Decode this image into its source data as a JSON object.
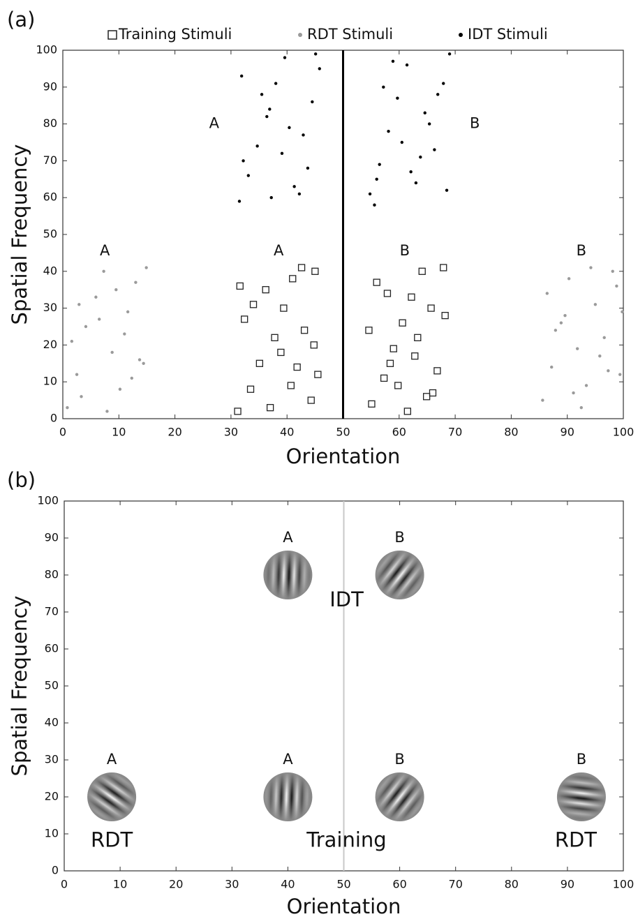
{
  "chart_data": [
    {
      "type": "scatter",
      "panel_label": "(a)",
      "x_label": "Orientation",
      "y_label": "Spatial Frequency",
      "xlim": [
        0,
        100
      ],
      "ylim": [
        0,
        100
      ],
      "xticks": [
        0,
        10,
        20,
        30,
        40,
        50,
        60,
        70,
        80,
        90,
        100
      ],
      "yticks": [
        0,
        10,
        20,
        30,
        40,
        50,
        60,
        70,
        80,
        90,
        100
      ],
      "vline": {
        "x": 50,
        "color": "#000000"
      },
      "series": [
        {
          "name": "Training Stimuli",
          "marker": "square",
          "color": "#222222",
          "x": [
            31.2,
            33.5,
            35.1,
            37.8,
            39.4,
            41.0,
            42.6,
            44.3,
            45.5,
            32.4,
            36.2,
            38.9,
            40.7,
            43.1,
            45.0,
            34.0,
            37.0,
            41.8,
            44.8,
            31.6,
            55.1,
            57.3,
            59.0,
            60.6,
            62.2,
            64.1,
            66.0,
            68.2,
            56.0,
            58.4,
            61.5,
            63.3,
            65.7,
            67.9,
            54.6,
            59.8,
            62.8,
            66.8,
            57.9,
            64.9
          ],
          "y": [
            2,
            8,
            15,
            22,
            30,
            38,
            41,
            5,
            12,
            27,
            35,
            18,
            9,
            24,
            40,
            31,
            3,
            14,
            20,
            36,
            4,
            11,
            19,
            26,
            33,
            40,
            7,
            28,
            37,
            15,
            2,
            22,
            30,
            41,
            24,
            9,
            17,
            13,
            34,
            6
          ]
        },
        {
          "name": "RDT Stimuli",
          "marker": "circle",
          "color": "#9a9a9a",
          "x": [
            0.8,
            2.5,
            4.1,
            5.9,
            7.3,
            8.8,
            10.2,
            11.6,
            13.0,
            14.4,
            1.6,
            3.3,
            6.5,
            9.5,
            12.3,
            14.9,
            2.9,
            7.9,
            11.0,
            13.7,
            85.6,
            87.2,
            88.9,
            90.3,
            91.8,
            93.4,
            95.0,
            96.6,
            98.1,
            99.4,
            86.4,
            89.6,
            92.5,
            95.8,
            98.8,
            87.9,
            91.1,
            94.2,
            97.3,
            99.8
          ],
          "y": [
            3,
            12,
            25,
            33,
            40,
            18,
            8,
            29,
            37,
            15,
            21,
            6,
            27,
            35,
            11,
            41,
            31,
            2,
            23,
            16,
            5,
            14,
            26,
            38,
            19,
            9,
            31,
            22,
            40,
            12,
            34,
            28,
            3,
            17,
            36,
            24,
            7,
            41,
            13,
            29
          ]
        },
        {
          "name": "IDT Stimuli",
          "marker": "circle",
          "color": "#000000",
          "x": [
            31.5,
            33.1,
            34.7,
            36.4,
            38.0,
            39.6,
            41.3,
            42.9,
            44.5,
            45.8,
            32.2,
            35.5,
            37.2,
            40.4,
            43.7,
            31.9,
            36.9,
            39.1,
            42.2,
            45.1,
            54.8,
            56.5,
            58.1,
            59.7,
            61.4,
            63.0,
            64.6,
            66.3,
            67.9,
            69.0,
            55.6,
            57.2,
            60.5,
            62.1,
            65.4,
            68.5,
            58.9,
            63.8,
            66.9,
            56.0
          ],
          "y": [
            59,
            66,
            74,
            82,
            91,
            98,
            63,
            77,
            86,
            95,
            70,
            88,
            60,
            79,
            68,
            93,
            84,
            72,
            61,
            99,
            61,
            69,
            78,
            87,
            96,
            64,
            83,
            73,
            91,
            99,
            58,
            90,
            75,
            67,
            80,
            62,
            97,
            71,
            88,
            65
          ]
        }
      ],
      "annotations": [
        {
          "text": "A",
          "x": 27,
          "y": 80
        },
        {
          "text": "B",
          "x": 73.5,
          "y": 80
        },
        {
          "text": "A",
          "x": 7.5,
          "y": 45.5
        },
        {
          "text": "A",
          "x": 38.5,
          "y": 45.5
        },
        {
          "text": "B",
          "x": 61,
          "y": 45.5
        },
        {
          "text": "B",
          "x": 92.5,
          "y": 45.5
        }
      ]
    },
    {
      "type": "gabor",
      "panel_label": "(b)",
      "x_label": "Orientation",
      "y_label": "Spatial Frequency",
      "xlim": [
        0,
        100
      ],
      "ylim": [
        0,
        100
      ],
      "xticks": [
        0,
        10,
        20,
        30,
        40,
        50,
        60,
        70,
        80,
        90,
        100
      ],
      "yticks": [
        0,
        10,
        20,
        30,
        40,
        50,
        60,
        70,
        80,
        90,
        100
      ],
      "vline": {
        "x": 50,
        "color": "#c8c8c8"
      },
      "stimuli": {
        "x": [
          8.5,
          40,
          60,
          92.5,
          40,
          60
        ],
        "y": [
          20,
          20,
          20,
          20,
          80,
          80
        ],
        "labels": [
          "A",
          "A",
          "B",
          "B",
          "A",
          "B"
        ]
      },
      "annotations": [
        {
          "text": "IDT",
          "x": 50.5,
          "y": 73
        },
        {
          "text": "RDT",
          "x": 8.5,
          "y": 8
        },
        {
          "text": "Training",
          "x": 50.5,
          "y": 8
        },
        {
          "text": "RDT",
          "x": 91.5,
          "y": 8
        }
      ]
    }
  ]
}
